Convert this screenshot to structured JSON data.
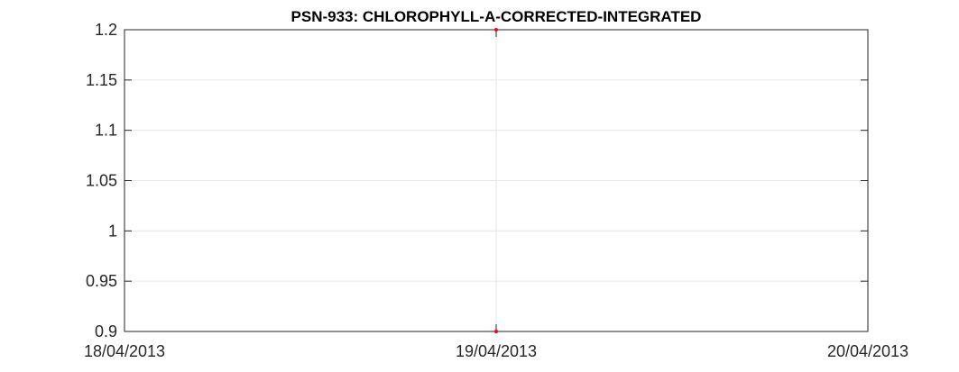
{
  "chart_data": {
    "type": "scatter",
    "title": "PSN-933: CHLOROPHYLL-A-CORRECTED-INTEGRATED",
    "xlabel": "",
    "ylabel": "",
    "x_ticks": [
      "18/04/2013",
      "19/04/2013",
      "20/04/2013"
    ],
    "xlim": [
      "18/04/2013",
      "20/04/2013"
    ],
    "y_ticks": [
      "0.9",
      "0.95",
      "1",
      "1.05",
      "1.1",
      "1.15",
      "1.2"
    ],
    "ylim": [
      0.9,
      1.2
    ],
    "grid": true,
    "series": [
      {
        "color": "#ff0000",
        "points": [
          {
            "x": "19/04/2013",
            "y": 1.2
          },
          {
            "x": "19/04/2013",
            "y": 0.9
          }
        ]
      }
    ]
  }
}
